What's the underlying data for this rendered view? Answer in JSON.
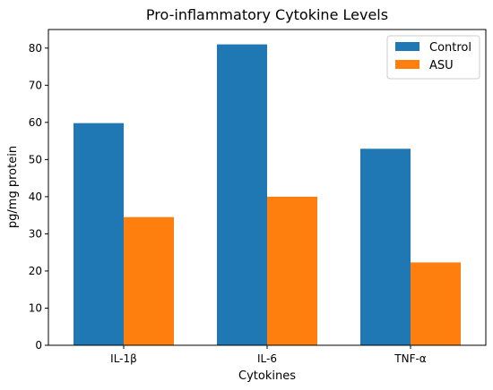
{
  "chart_data": {
    "type": "bar",
    "title": "Pro-inflammatory Cytokine Levels",
    "xlabel": "Cytokines",
    "ylabel": "pg/mg protein",
    "categories": [
      "IL-1β",
      "IL-6",
      "TNF-α"
    ],
    "series": [
      {
        "name": "Control",
        "values": [
          59.8,
          81.0,
          52.9
        ],
        "color": "#1f77b4"
      },
      {
        "name": "ASU",
        "values": [
          34.5,
          40.0,
          22.3
        ],
        "color": "#ff7f0e"
      }
    ],
    "ylim": [
      0,
      85
    ],
    "yticks": [
      0,
      10,
      20,
      30,
      40,
      50,
      60,
      70,
      80
    ],
    "grid": false,
    "legend_position": "top-right"
  }
}
